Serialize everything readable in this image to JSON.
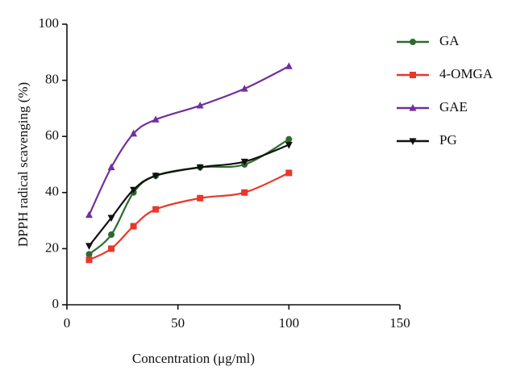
{
  "chart_data": {
    "type": "line",
    "x_label": "Concentration (μg/ml)",
    "y_label": "DPPH radical scavenging (%)",
    "x": [
      10,
      20,
      30,
      40,
      60,
      80,
      100
    ],
    "xlim": [
      0,
      150
    ],
    "xticks": [
      0,
      50,
      100,
      150
    ],
    "ylim": [
      0,
      100
    ],
    "yticks": [
      0,
      20,
      40,
      60,
      80,
      100
    ],
    "legend": "right",
    "series": [
      {
        "name": "GA",
        "color": "#2e6b2e",
        "marker": "circle",
        "values": [
          18,
          25,
          40,
          46,
          49,
          50,
          59
        ]
      },
      {
        "name": "4-OMGA",
        "color": "#e8372b",
        "marker": "square",
        "values": [
          16,
          20,
          28,
          34,
          38,
          40,
          47
        ]
      },
      {
        "name": "GAE",
        "color": "#7030a0",
        "marker": "triangle-up",
        "values": [
          32,
          49,
          61,
          66,
          71,
          77,
          85
        ]
      },
      {
        "name": "PG",
        "color": "#111111",
        "marker": "triangle-down",
        "values": [
          21,
          31,
          41,
          46,
          49,
          51,
          57
        ]
      }
    ]
  }
}
